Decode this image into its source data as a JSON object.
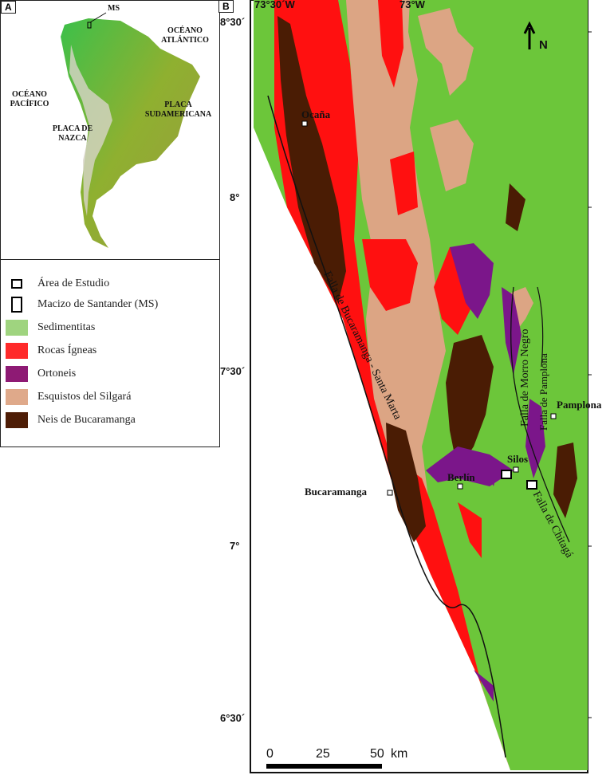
{
  "panel_a": {
    "tag": "A",
    "labels": {
      "ms": "MS",
      "atlantic": "OCÉANO ATLÁNTICO",
      "pacific": "OCÉANO PACÍFICO",
      "sudamericana": "PLACA SUDAMERICANA",
      "nazca": "PLACA DE NAZCA"
    }
  },
  "legend": {
    "items": [
      {
        "label": "Área de Estudio",
        "symbol": "small-square"
      },
      {
        "label": "Macizo de Santander (MS)",
        "symbol": "tall-rectangle"
      },
      {
        "label": "Sedimentitas",
        "color": "#9fd47f"
      },
      {
        "label": "Rocas Ígneas",
        "color": "#ff2a2a"
      },
      {
        "label": "Ortoneis",
        "color": "#8e1a74"
      },
      {
        "label": "Esquistos del Silgará",
        "color": "#dfa98a"
      },
      {
        "label": "Neis de Bucaramanga",
        "color": "#4e1d06"
      }
    ]
  },
  "panel_b": {
    "tag": "B",
    "longitudes": [
      "73°30´W",
      "73°W"
    ],
    "latitudes": [
      "8°30´",
      "8°",
      "7°30´",
      "7°",
      "6°30´"
    ],
    "north": "N",
    "cities": [
      "Ocaña",
      "Bucaramanga",
      "Berlín",
      "Silos",
      "Pamplona"
    ],
    "faults": [
      "Falla de Bucaramanga - Santa Marta",
      "Falla de Morro Negro",
      "Falla de Pamplona",
      "Falla de Chitagá"
    ],
    "scale": {
      "ticks": [
        "0",
        "25",
        "50"
      ],
      "unit": "km"
    },
    "colors": {
      "sed": "#6cc63a",
      "ign": "#ff1010",
      "ort": "#7b168a",
      "esq": "#dca584",
      "neis": "#4a1c04"
    }
  }
}
